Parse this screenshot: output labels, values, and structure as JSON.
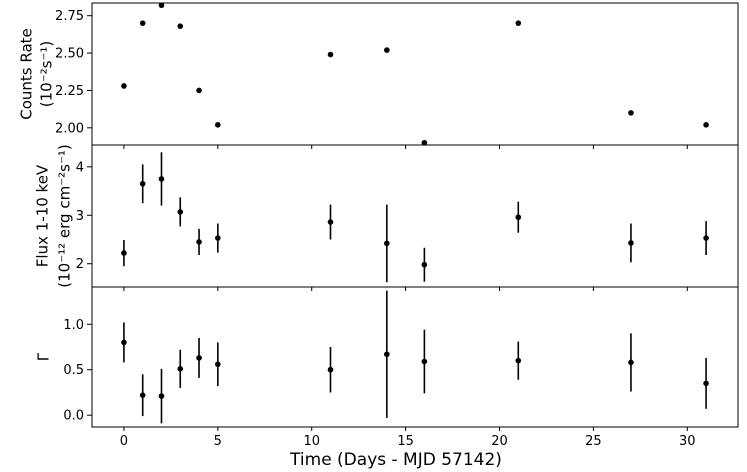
{
  "chart_data": {
    "type": "scatter",
    "xlabel": "Time (Days - MJD 57142)",
    "xlim": [
      -1.7,
      32.7
    ],
    "xticks": [
      0,
      5,
      10,
      15,
      20,
      25,
      30
    ],
    "x": [
      0,
      1,
      2,
      3,
      4,
      5,
      11,
      14,
      16,
      21,
      27,
      31
    ],
    "panels": [
      {
        "ylabel_lines": [
          "Counts Rate",
          "(10⁻²s⁻¹)"
        ],
        "ylim": [
          1.885,
          2.835
        ],
        "yticks": [
          2.0,
          2.25,
          2.5,
          2.75
        ],
        "ytick_labels": [
          "2.00",
          "2.25",
          "2.50",
          "2.75"
        ],
        "values": [
          2.28,
          2.7,
          2.82,
          2.68,
          2.25,
          2.02,
          2.49,
          2.52,
          1.9,
          2.7,
          2.1,
          2.02
        ],
        "errors": null
      },
      {
        "ylabel_lines": [
          "Flux 1-10 keV",
          "(10⁻¹² erg cm⁻²s⁻¹)"
        ],
        "ylim": [
          1.52,
          4.45
        ],
        "yticks": [
          2,
          3,
          4
        ],
        "ytick_labels": [
          "2",
          "3",
          "4"
        ],
        "values": [
          2.22,
          3.65,
          3.75,
          3.07,
          2.45,
          2.53,
          2.86,
          2.42,
          1.98,
          2.96,
          2.43,
          2.53
        ],
        "errors": [
          0.27,
          0.4,
          0.55,
          0.3,
          0.27,
          0.3,
          0.36,
          0.8,
          0.35,
          0.32,
          0.4,
          0.35
        ]
      },
      {
        "ylabel_lines": [
          "Γ"
        ],
        "ylim": [
          -0.13,
          1.41
        ],
        "yticks": [
          0.0,
          0.5,
          1.0
        ],
        "ytick_labels": [
          "0.0",
          "0.5",
          "1.0"
        ],
        "values": [
          0.8,
          0.22,
          0.21,
          0.51,
          0.63,
          0.56,
          0.5,
          0.67,
          0.59,
          0.6,
          0.58,
          0.35
        ],
        "errors": [
          0.22,
          0.23,
          0.3,
          0.21,
          0.22,
          0.24,
          0.25,
          0.7,
          0.35,
          0.21,
          0.32,
          0.28
        ]
      }
    ],
    "grid": false,
    "legend": "none",
    "marker_color": "#000000"
  }
}
